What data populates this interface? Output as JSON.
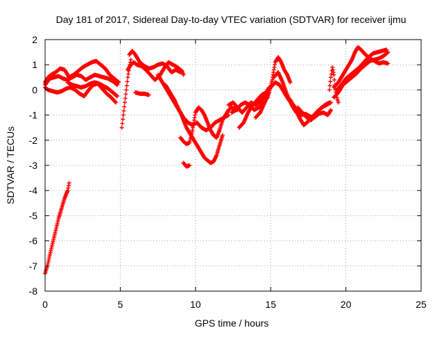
{
  "chart_data": {
    "type": "scatter",
    "title": "Day 181 of 2017, Sidereal Day-to-day VTEC variation (SDTVAR) for receiver ijmu",
    "xlabel": "GPS time / hours",
    "ylabel": "SDTVAR / TECUs",
    "xlim": [
      0,
      25
    ],
    "ylim": [
      -8,
      2
    ],
    "xticks": [
      0,
      5,
      10,
      15,
      20,
      25
    ],
    "yticks": [
      -8,
      -7,
      -6,
      -5,
      -4,
      -3,
      -2,
      -1,
      0,
      1,
      2
    ],
    "grid": true,
    "marker": "plus",
    "series": [
      {
        "name": "SDTVAR",
        "color": "#ff0000",
        "tracks": [
          {
            "x": [
              0.0,
              0.15,
              0.3,
              0.5,
              0.7,
              0.9,
              1.1,
              1.3,
              1.5,
              1.6
            ],
            "y": [
              -7.3,
              -7.0,
              -6.6,
              -6.1,
              -5.6,
              -5.1,
              -4.7,
              -4.3,
              -4.0,
              -3.7
            ]
          },
          {
            "x": [
              0.0,
              0.2,
              0.4,
              0.7,
              1.0,
              1.3,
              1.6,
              1.9,
              2.2,
              2.5,
              2.8,
              3.1,
              3.4,
              3.7,
              4.0,
              4.3,
              4.6,
              4.9
            ],
            "y": [
              0.3,
              0.5,
              0.6,
              0.7,
              0.85,
              0.8,
              0.5,
              0.6,
              0.75,
              0.9,
              1.0,
              1.1,
              1.15,
              1.0,
              0.85,
              0.6,
              0.45,
              0.3
            ]
          },
          {
            "x": [
              0.0,
              0.3,
              0.6,
              0.9,
              1.2,
              1.5,
              1.8,
              2.1,
              2.4,
              2.7,
              3.0,
              3.3,
              3.6,
              3.9,
              4.2,
              4.5,
              4.8
            ],
            "y": [
              0.2,
              0.45,
              0.5,
              0.55,
              0.45,
              0.4,
              0.5,
              0.6,
              0.55,
              0.4,
              0.5,
              0.6,
              0.55,
              0.5,
              0.45,
              0.35,
              0.2
            ]
          },
          {
            "x": [
              0.0,
              0.2,
              0.5,
              0.8,
              1.1,
              1.4,
              1.7,
              2.0,
              2.3,
              2.6,
              2.9,
              3.2,
              3.5,
              3.8,
              4.1,
              4.4,
              4.7
            ],
            "y": [
              0.1,
              0.0,
              -0.05,
              -0.1,
              -0.05,
              0.05,
              0.1,
              0.0,
              -0.15,
              -0.25,
              0.0,
              0.2,
              0.25,
              0.05,
              -0.15,
              -0.3,
              -0.5
            ]
          },
          {
            "x": [
              1.5,
              1.8,
              2.1,
              2.4,
              2.7,
              3.0,
              3.3,
              3.6,
              3.9,
              4.2,
              4.5,
              4.8
            ],
            "y": [
              0.3,
              0.2,
              0.15,
              0.1,
              0.15,
              0.25,
              0.3,
              0.25,
              0.15,
              0.05,
              -0.1,
              -0.25
            ]
          },
          {
            "x": [
              5.1,
              5.2,
              5.3,
              5.4,
              5.5,
              5.6,
              5.7
            ],
            "y": [
              -1.5,
              -1.0,
              -0.5,
              0.0,
              0.5,
              0.9,
              1.2
            ]
          },
          {
            "x": [
              5.6,
              5.8,
              6.0,
              6.3,
              6.6,
              6.9,
              7.2,
              7.5,
              7.8,
              8.1,
              8.4,
              8.7,
              9.0
            ],
            "y": [
              1.4,
              1.55,
              1.4,
              1.1,
              0.95,
              0.85,
              0.9,
              1.0,
              1.05,
              0.95,
              0.7,
              0.8,
              0.7
            ]
          },
          {
            "x": [
              5.5,
              5.7,
              5.9,
              6.1,
              6.4,
              6.7,
              7.0,
              7.3,
              7.6,
              7.9,
              8.2,
              8.5,
              8.8,
              9.1,
              9.2
            ],
            "y": [
              0.8,
              1.0,
              1.1,
              1.0,
              0.95,
              0.8,
              0.6,
              0.4,
              0.55,
              0.85,
              1.1,
              1.0,
              0.9,
              0.75,
              0.6
            ]
          },
          {
            "x": [
              6.0,
              6.3,
              6.6,
              6.9
            ],
            "y": [
              -0.1,
              -0.15,
              -0.15,
              -0.2
            ]
          },
          {
            "x": [
              7.5,
              7.8,
              8.1,
              8.4,
              8.7,
              9.0,
              9.2,
              9.4,
              9.6,
              9.8,
              10.0,
              10.2,
              10.4,
              10.6,
              10.8,
              11.0,
              11.2,
              11.4,
              11.6,
              11.8
            ],
            "y": [
              0.6,
              0.3,
              0.0,
              -0.3,
              -0.6,
              -0.9,
              -1.2,
              -1.5,
              -1.7,
              -1.9,
              -2.1,
              -2.3,
              -2.5,
              -2.7,
              -2.8,
              -2.9,
              -2.85,
              -2.6,
              -2.2,
              -1.8
            ]
          },
          {
            "x": [
              8.0,
              8.3,
              8.6,
              8.9,
              9.2,
              9.5,
              9.8,
              10.1,
              10.4,
              10.7,
              11.0,
              11.3,
              11.6,
              11.9,
              12.2
            ],
            "y": [
              0.2,
              -0.1,
              -0.4,
              -0.8,
              -1.1,
              -1.3,
              -1.4,
              -1.3,
              -1.5,
              -1.6,
              -1.5,
              -1.3,
              -1.2,
              -1.1,
              -1.0
            ]
          },
          {
            "x": [
              9.0,
              9.2,
              9.4,
              9.6,
              9.8,
              10.0,
              10.2,
              10.4,
              10.6,
              10.8,
              11.0,
              11.2,
              11.4,
              11.6,
              11.8,
              12.0,
              12.2,
              12.4,
              12.6,
              12.8
            ],
            "y": [
              -1.9,
              -2.05,
              -2.15,
              -2.1,
              -1.6,
              -0.9,
              -0.7,
              -0.8,
              -1.0,
              -1.3,
              -1.6,
              -1.8,
              -1.9,
              -1.6,
              -1.2,
              -1.0,
              -0.8,
              -0.7,
              -0.75,
              -0.8
            ]
          },
          {
            "x": [
              9.2,
              9.4,
              9.6
            ],
            "y": [
              -2.9,
              -3.05,
              -3.0
            ]
          },
          {
            "x": [
              12.2,
              12.5,
              12.8,
              13.1,
              13.4,
              13.7,
              14.0,
              14.3,
              14.6,
              14.9
            ],
            "y": [
              -0.6,
              -0.5,
              -0.7,
              -0.9,
              -0.7,
              -0.5,
              -0.6,
              -0.45,
              -0.2,
              0.1
            ]
          },
          {
            "x": [
              12.4,
              12.7,
              13.0,
              13.3,
              13.6,
              13.9,
              14.2,
              14.5,
              14.8
            ],
            "y": [
              -0.9,
              -0.8,
              -0.6,
              -0.5,
              -0.6,
              -0.8,
              -0.7,
              -0.5,
              -0.3
            ]
          },
          {
            "x": [
              12.9,
              13.2,
              13.5,
              13.8,
              14.1,
              14.4,
              14.7,
              15.0,
              15.3,
              15.6,
              15.9,
              16.2,
              16.5,
              16.8,
              17.1
            ],
            "y": [
              -1.5,
              -1.3,
              -0.9,
              -0.6,
              -0.4,
              -0.2,
              -0.1,
              0.1,
              0.3,
              0.2,
              -0.1,
              -0.4,
              -0.6,
              -0.8,
              -1.0
            ]
          },
          {
            "x": [
              14.0,
              14.3,
              14.6,
              14.9,
              15.1,
              15.3,
              15.5,
              15.7,
              15.9,
              16.1,
              16.3
            ],
            "y": [
              -1.1,
              -0.9,
              -0.5,
              -0.1,
              0.4,
              1.1,
              1.3,
              1.1,
              0.8,
              0.6,
              0.3
            ]
          },
          {
            "x": [
              15.2,
              15.5,
              15.8,
              16.1,
              16.4,
              16.7,
              17.0,
              17.3,
              17.6,
              17.9,
              18.2,
              18.5,
              18.8,
              19.0
            ],
            "y": [
              0.5,
              0.7,
              0.3,
              -0.2,
              -0.6,
              -0.9,
              -1.0,
              -0.95,
              -1.05,
              -1.1,
              -0.95,
              -0.9,
              -1.0,
              -0.8
            ]
          },
          {
            "x": [
              16.0,
              16.3,
              16.6,
              16.9,
              17.2,
              17.5,
              17.8,
              18.1,
              18.4,
              18.7,
              19.0
            ],
            "y": [
              -0.2,
              -0.4,
              -0.7,
              -1.1,
              -1.4,
              -1.25,
              -1.05,
              -0.85,
              -0.7,
              -0.6,
              -0.5
            ]
          },
          {
            "x": [
              16.8,
              17.1,
              17.4,
              17.7,
              18.0,
              18.3,
              18.6,
              18.9
            ],
            "y": [
              -0.7,
              -0.9,
              -1.1,
              -1.2,
              -0.95,
              -0.75,
              -0.6,
              -0.5
            ]
          },
          {
            "x": [
              18.9,
              19.0,
              19.1,
              19.2,
              19.3,
              19.4,
              19.5
            ],
            "y": [
              0.0,
              0.5,
              0.9,
              0.6,
              0.0,
              -0.3,
              -0.5
            ]
          },
          {
            "x": [
              19.2,
              19.5,
              19.8,
              20.1,
              20.4,
              20.7,
              21.0,
              21.3,
              21.6,
              21.9,
              22.2,
              22.5,
              22.8
            ],
            "y": [
              -0.3,
              -0.1,
              0.2,
              0.35,
              0.5,
              0.65,
              0.85,
              1.0,
              1.15,
              1.2,
              1.25,
              1.35,
              1.5
            ]
          },
          {
            "x": [
              19.2,
              19.5,
              19.8,
              20.1,
              20.4,
              20.6,
              20.8,
              21.0,
              21.3,
              21.6,
              21.9,
              22.2,
              22.5,
              22.8
            ],
            "y": [
              0.1,
              0.3,
              0.6,
              0.9,
              1.2,
              1.5,
              1.7,
              1.6,
              1.4,
              1.25,
              1.15,
              1.05,
              1.1,
              1.05
            ]
          },
          {
            "x": [
              19.4,
              19.7,
              20.0,
              20.3,
              20.6,
              20.9,
              21.2,
              21.5,
              21.8,
              22.1,
              22.4,
              22.7
            ],
            "y": [
              0.0,
              0.2,
              0.45,
              0.6,
              0.75,
              0.9,
              1.1,
              1.3,
              1.45,
              1.5,
              1.55,
              1.6
            ]
          }
        ]
      }
    ]
  }
}
